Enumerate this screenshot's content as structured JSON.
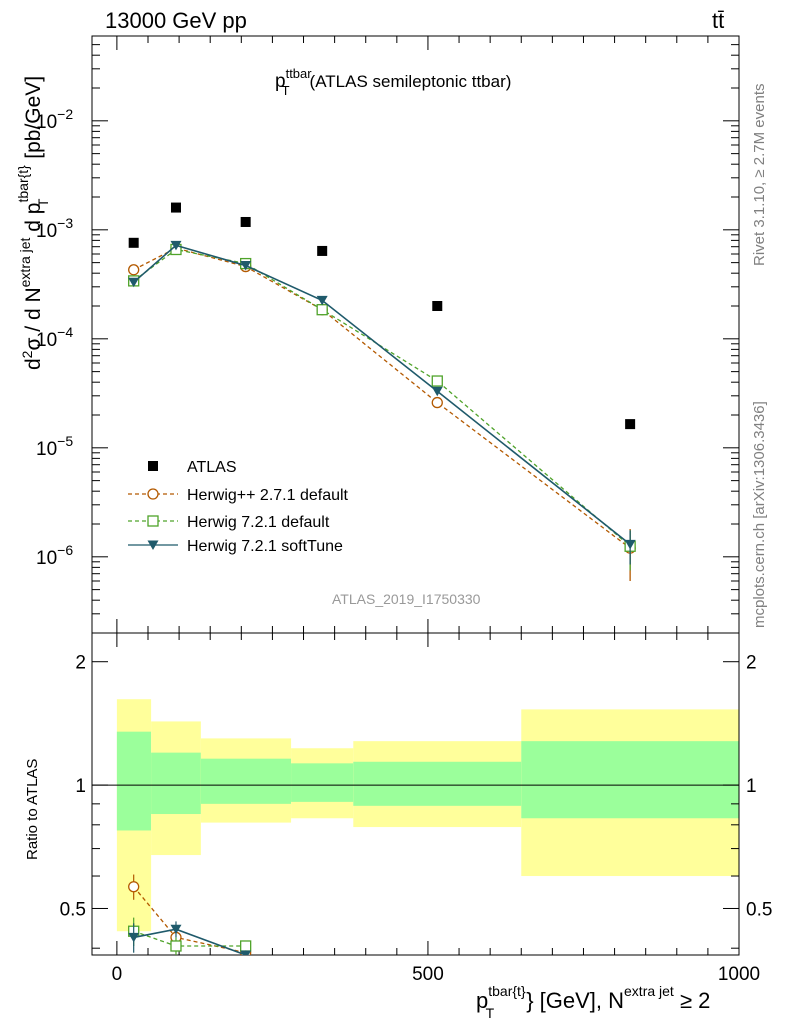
{
  "header": {
    "energy": "13000 GeV pp",
    "process": "tt̄"
  },
  "side_labels": {
    "rivet": "Rivet 3.1.10, ≥ 2.7M events",
    "mcplots": "mcplots.cern.ch [arXiv:1306.3436]"
  },
  "watermark": "ATLAS_2019_I1750330",
  "main_title": {
    "prefix": "p",
    "sub": "T",
    "sup": "ttbar",
    "suffix": "(ATLAS semileptonic ttbar)"
  },
  "ylabel_main": "d²σ / d N^{extra jet} d p_T^{tbar{t}} [pb/GeV]",
  "ylabel_ratio": "Ratio to ATLAS",
  "xlabel": "p_T^{tbar{t}} [GeV], N^{extra jet} ≥ 2",
  "colors": {
    "atlas": "#000000",
    "herwigpp": "#b35900",
    "herwig721": "#4fa32a",
    "softtune": "#1f5a6b",
    "band_inner": "#9bff9b",
    "band_outer": "#ffff9b"
  },
  "chart_data": [
    {
      "type": "scatter",
      "panel": "main",
      "yscale": "log",
      "xlim": [
        -40,
        1000
      ],
      "ylim": [
        2e-07,
        0.06
      ],
      "x_ticks": [
        "0",
        "500",
        "1000"
      ],
      "y_ticks": [
        {
          "value": 1e-06,
          "mant": "10",
          "exp": "−6"
        },
        {
          "value": 1e-05,
          "mant": "10",
          "exp": "−5"
        },
        {
          "value": 0.0001,
          "mant": "10",
          "exp": "−4"
        },
        {
          "value": 0.001,
          "mant": "10",
          "exp": "−3"
        },
        {
          "value": 0.01,
          "mant": "10",
          "exp": "−2"
        }
      ],
      "bins": [
        [
          0,
          55
        ],
        [
          55,
          135
        ],
        [
          135,
          280
        ],
        [
          280,
          380
        ],
        [
          380,
          650
        ],
        [
          650,
          1000
        ]
      ],
      "series": [
        {
          "name": "ATLAS",
          "marker": "square",
          "x": [
            27,
            95,
            207,
            330,
            515,
            825
          ],
          "values": [
            0.00076,
            0.0016,
            0.00118,
            0.00064,
            0.0002,
            1.65e-05
          ]
        },
        {
          "name": "Herwig++ 2.7.1 default",
          "marker": "circle",
          "dash": true,
          "x": [
            27,
            95,
            207,
            330,
            515,
            825
          ],
          "values": [
            0.00043,
            0.00068,
            0.00046,
            0.000185,
            2.6e-05,
            1.2e-06
          ],
          "errors": [
            0,
            0,
            0,
            0,
            0,
            6e-07
          ]
        },
        {
          "name": "Herwig 7.2.1 default",
          "marker": "opensquare",
          "dash": true,
          "x": [
            27,
            95,
            207,
            330,
            515,
            825
          ],
          "values": [
            0.00034,
            0.00066,
            0.00049,
            0.000185,
            4.1e-05,
            1.25e-06
          ],
          "errors": [
            0,
            0,
            0,
            0,
            0,
            5e-07
          ]
        },
        {
          "name": "Herwig 7.2.1 softTune",
          "marker": "triangle",
          "dash": false,
          "x": [
            27,
            95,
            207,
            330,
            515,
            825
          ],
          "values": [
            0.00033,
            0.00072,
            0.00047,
            0.000225,
            3.3e-05,
            1.3e-06
          ],
          "errors": [
            0,
            0,
            0,
            0,
            0,
            4.5e-07
          ]
        }
      ]
    },
    {
      "type": "scatter",
      "panel": "ratio",
      "yscale": "log",
      "ylim": [
        0.385,
        2.35
      ],
      "y_ticks": [
        {
          "value": 0.5,
          "label": "0.5"
        },
        {
          "value": 1,
          "label": "1"
        },
        {
          "value": 2,
          "label": "2"
        }
      ],
      "bands": [
        {
          "bin": [
            0,
            55
          ],
          "inner": [
            0.775,
            1.35
          ],
          "outer": [
            0.44,
            1.62
          ]
        },
        {
          "bin": [
            55,
            135
          ],
          "inner": [
            0.85,
            1.2
          ],
          "outer": [
            0.675,
            1.43
          ]
        },
        {
          "bin": [
            135,
            280
          ],
          "inner": [
            0.9,
            1.16
          ],
          "outer": [
            0.81,
            1.3
          ]
        },
        {
          "bin": [
            280,
            380
          ],
          "inner": [
            0.91,
            1.13
          ],
          "outer": [
            0.83,
            1.23
          ]
        },
        {
          "bin": [
            380,
            650
          ],
          "inner": [
            0.89,
            1.14
          ],
          "outer": [
            0.79,
            1.28
          ]
        },
        {
          "bin": [
            650,
            1000
          ],
          "inner": [
            0.83,
            1.28
          ],
          "outer": [
            0.6,
            1.53
          ]
        }
      ],
      "series": [
        {
          "name": "Herwig++ 2.7.1 default",
          "x": [
            27,
            95,
            207
          ],
          "values": [
            0.565,
            0.425,
            0.39
          ],
          "errors": [
            0.04,
            0.02,
            0.01
          ]
        },
        {
          "name": "Herwig 7.2.1 default",
          "x": [
            27,
            95,
            207
          ],
          "values": [
            0.44,
            0.405,
            0.405
          ],
          "errors": [
            0.035,
            0.02,
            0.01
          ]
        },
        {
          "name": "Herwig 7.2.1 softTune",
          "x": [
            27,
            95,
            207
          ],
          "values": [
            0.425,
            0.445,
            0.385
          ],
          "errors": [
            0.035,
            0.02,
            0.01
          ]
        }
      ]
    }
  ]
}
